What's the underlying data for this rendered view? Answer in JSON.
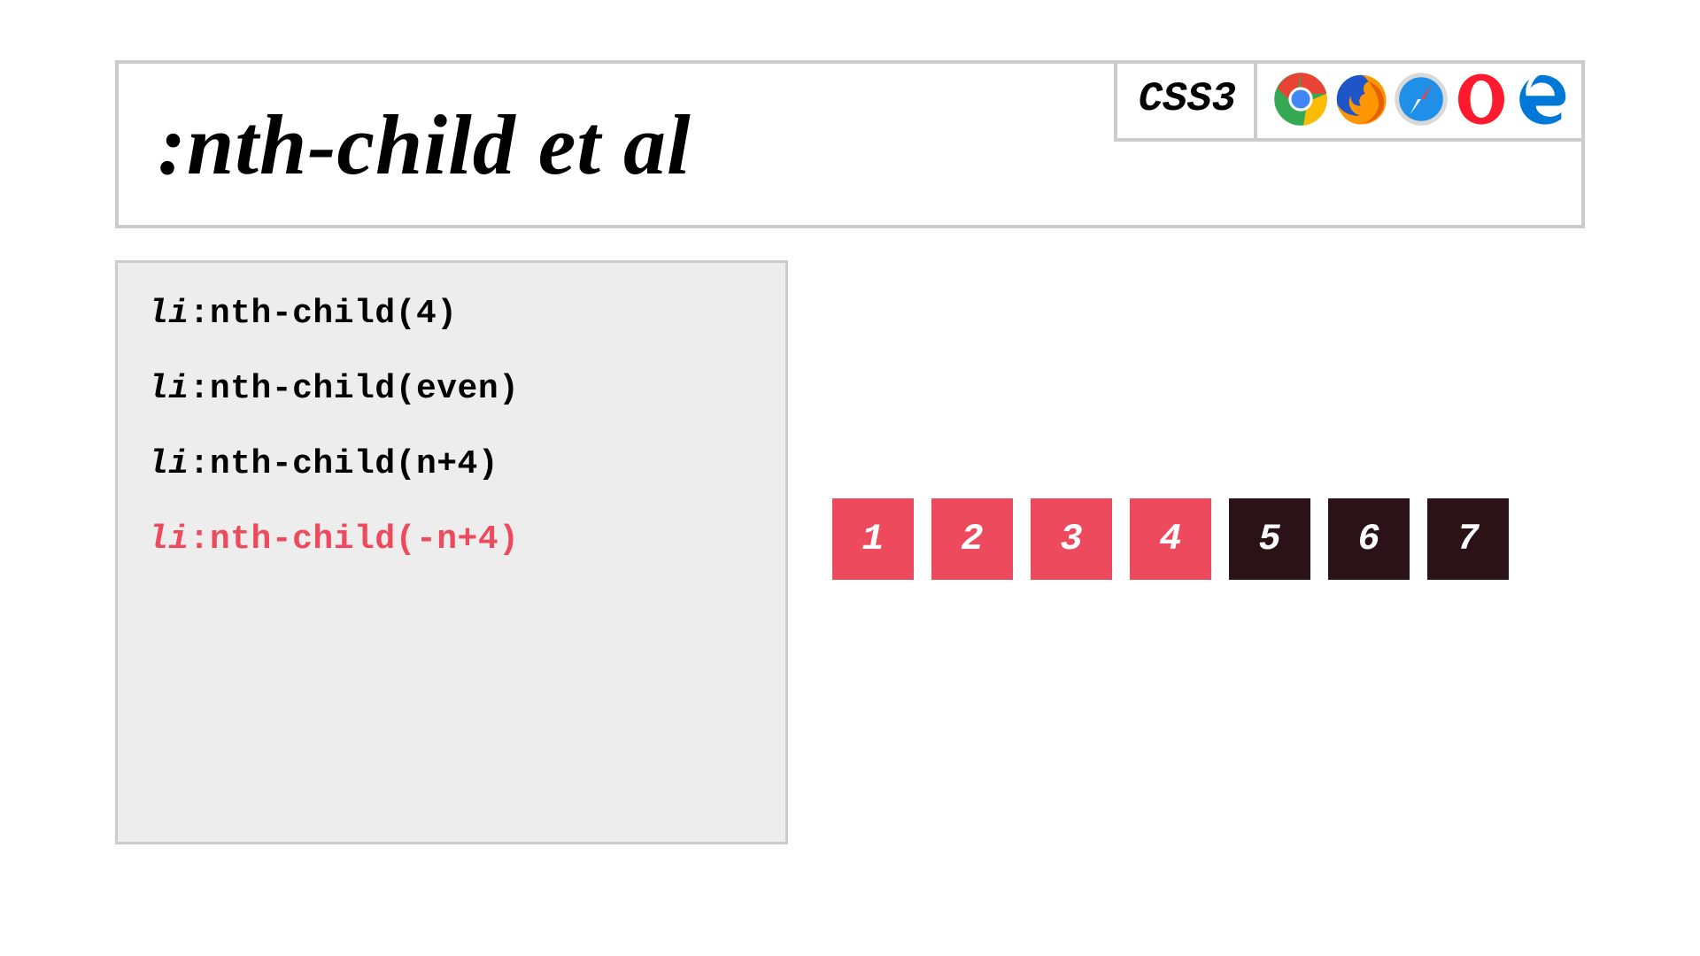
{
  "header": {
    "title": ":nth-child et al",
    "css_label": "CSS3",
    "browser_icons": [
      "chrome",
      "firefox",
      "safari",
      "opera",
      "edge"
    ]
  },
  "code": {
    "tag": "li",
    "default_color": "#000000",
    "highlight_color": "#ee4a5e",
    "lines": [
      {
        "selector": ":nth-child(4)",
        "highlighted": false
      },
      {
        "selector": ":nth-child(even)",
        "highlighted": false
      },
      {
        "selector": ":nth-child(n+4)",
        "highlighted": false
      },
      {
        "selector": ":nth-child(-n+4)",
        "highlighted": true
      }
    ]
  },
  "boxes": {
    "selected_color": "#ee4a5e",
    "unselected_color": "#2a1216",
    "items": [
      {
        "label": "1",
        "selected": true
      },
      {
        "label": "2",
        "selected": true
      },
      {
        "label": "3",
        "selected": true
      },
      {
        "label": "4",
        "selected": true
      },
      {
        "label": "5",
        "selected": false
      },
      {
        "label": "6",
        "selected": false
      },
      {
        "label": "7",
        "selected": false
      }
    ]
  },
  "icon_colors": {
    "chrome": {
      "outer": "#4285f4",
      "red": "#ea4335",
      "yellow": "#fbbc05",
      "green": "#34a853",
      "center": "#ffffff",
      "dot": "#4285f4"
    },
    "firefox": {
      "globe": "#1e56c7",
      "flame1": "#ff9500",
      "flame2": "#e66000"
    },
    "safari": {
      "ring": "#c9c9c9",
      "face": "#1f8fe8",
      "needle_red": "#ff3b30",
      "needle_white": "#ffffff"
    },
    "opera": {
      "o": "#ff1b2d"
    },
    "edge": {
      "e": "#0078d7"
    }
  }
}
